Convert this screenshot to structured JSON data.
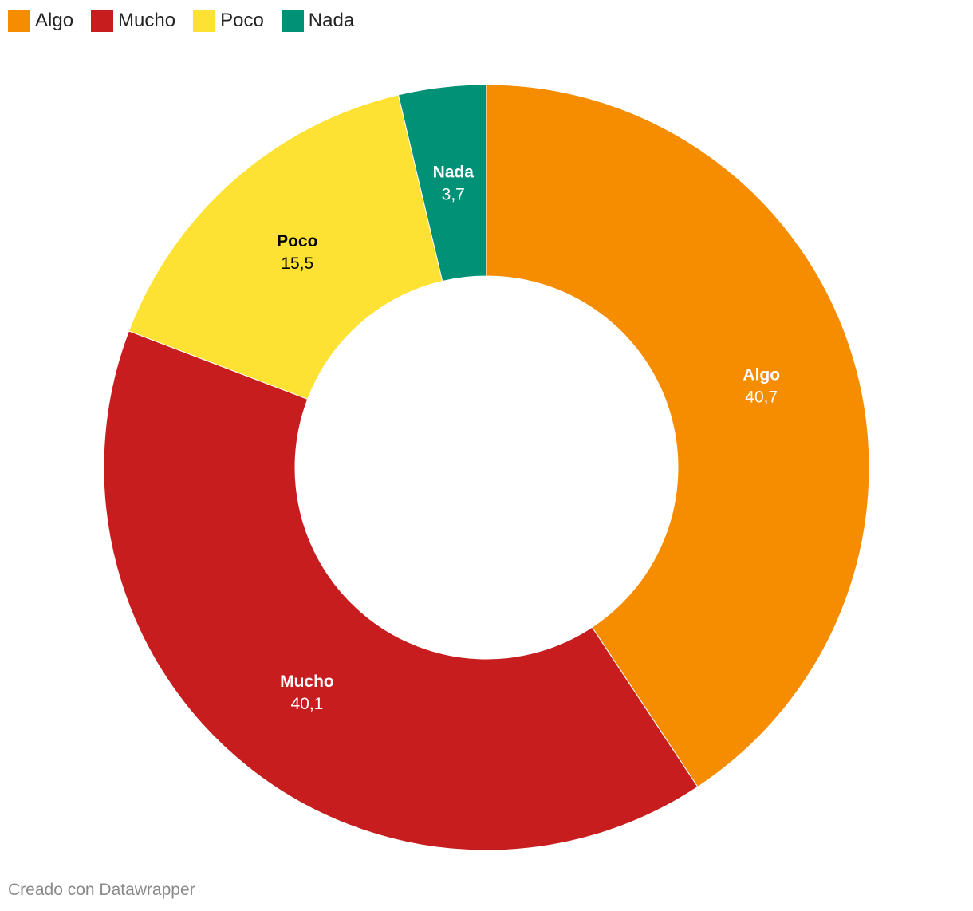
{
  "legend": [
    {
      "label": "Algo",
      "color": "#f68c00"
    },
    {
      "label": "Mucho",
      "color": "#c81d1f"
    },
    {
      "label": "Poco",
      "color": "#fee233"
    },
    {
      "label": "Nada",
      "color": "#009176"
    }
  ],
  "chart_data": {
    "type": "pie",
    "donut": true,
    "labels": [
      "Algo",
      "Mucho",
      "Poco",
      "Nada"
    ],
    "values": [
      40.7,
      40.1,
      15.5,
      3.7
    ],
    "value_labels": [
      "40,7",
      "40,1",
      "15,5",
      "3,7"
    ],
    "colors": [
      "#f68c00",
      "#c81d1f",
      "#fee233",
      "#009176"
    ],
    "label_colors": [
      "#ffffff",
      "#ffffff",
      "#000000",
      "#ffffff"
    ],
    "legend_position": "top-left",
    "start": "top",
    "direction": "clockwise"
  },
  "footer": {
    "credit": "Creado con Datawrapper"
  }
}
